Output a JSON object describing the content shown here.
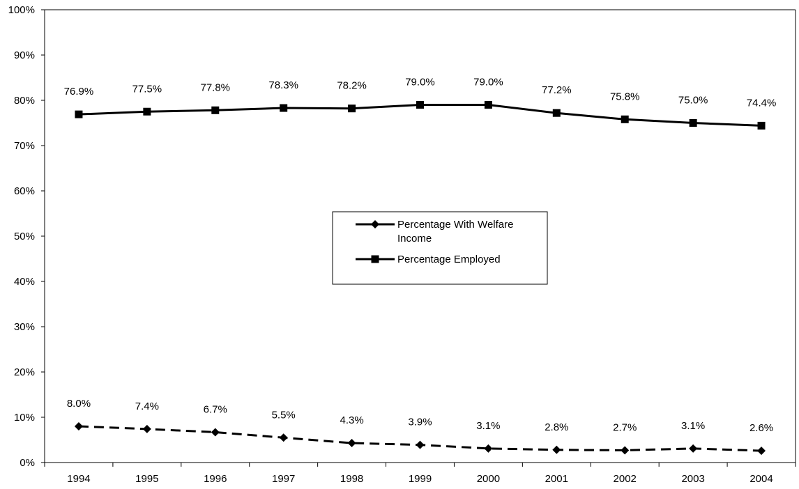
{
  "chart_data": {
    "type": "line",
    "title": "",
    "xlabel": "",
    "ylabel": "",
    "categories": [
      "1994",
      "1995",
      "1996",
      "1997",
      "1998",
      "1999",
      "2000",
      "2001",
      "2002",
      "2003",
      "2004"
    ],
    "ylim": [
      0,
      100
    ],
    "yticks": [
      "0%",
      "10%",
      "20%",
      "30%",
      "40%",
      "50%",
      "60%",
      "70%",
      "80%",
      "90%",
      "100%"
    ],
    "grid": false,
    "legend_position": "center",
    "series": [
      {
        "name": "Percentage With Welfare Income",
        "name_lines": [
          "Percentage With Welfare",
          "Income"
        ],
        "marker": "diamond",
        "line_style": "dashed",
        "color": "#000000",
        "values": [
          8.0,
          7.4,
          6.7,
          5.5,
          4.3,
          3.9,
          3.1,
          2.8,
          2.7,
          3.1,
          2.6
        ],
        "labels": [
          "8.0%",
          "7.4%",
          "6.7%",
          "5.5%",
          "4.3%",
          "3.9%",
          "3.1%",
          "2.8%",
          "2.7%",
          "3.1%",
          "2.6%"
        ]
      },
      {
        "name": "Percentage Employed",
        "name_lines": [
          "Percentage Employed"
        ],
        "marker": "square",
        "line_style": "solid",
        "color": "#000000",
        "values": [
          76.9,
          77.5,
          77.8,
          78.3,
          78.2,
          79.0,
          79.0,
          77.2,
          75.8,
          75.0,
          74.4
        ],
        "labels": [
          "76.9%",
          "77.5%",
          "77.8%",
          "78.3%",
          "78.2%",
          "79.0%",
          "79.0%",
          "77.2%",
          "75.8%",
          "75.0%",
          "74.4%"
        ]
      }
    ]
  }
}
